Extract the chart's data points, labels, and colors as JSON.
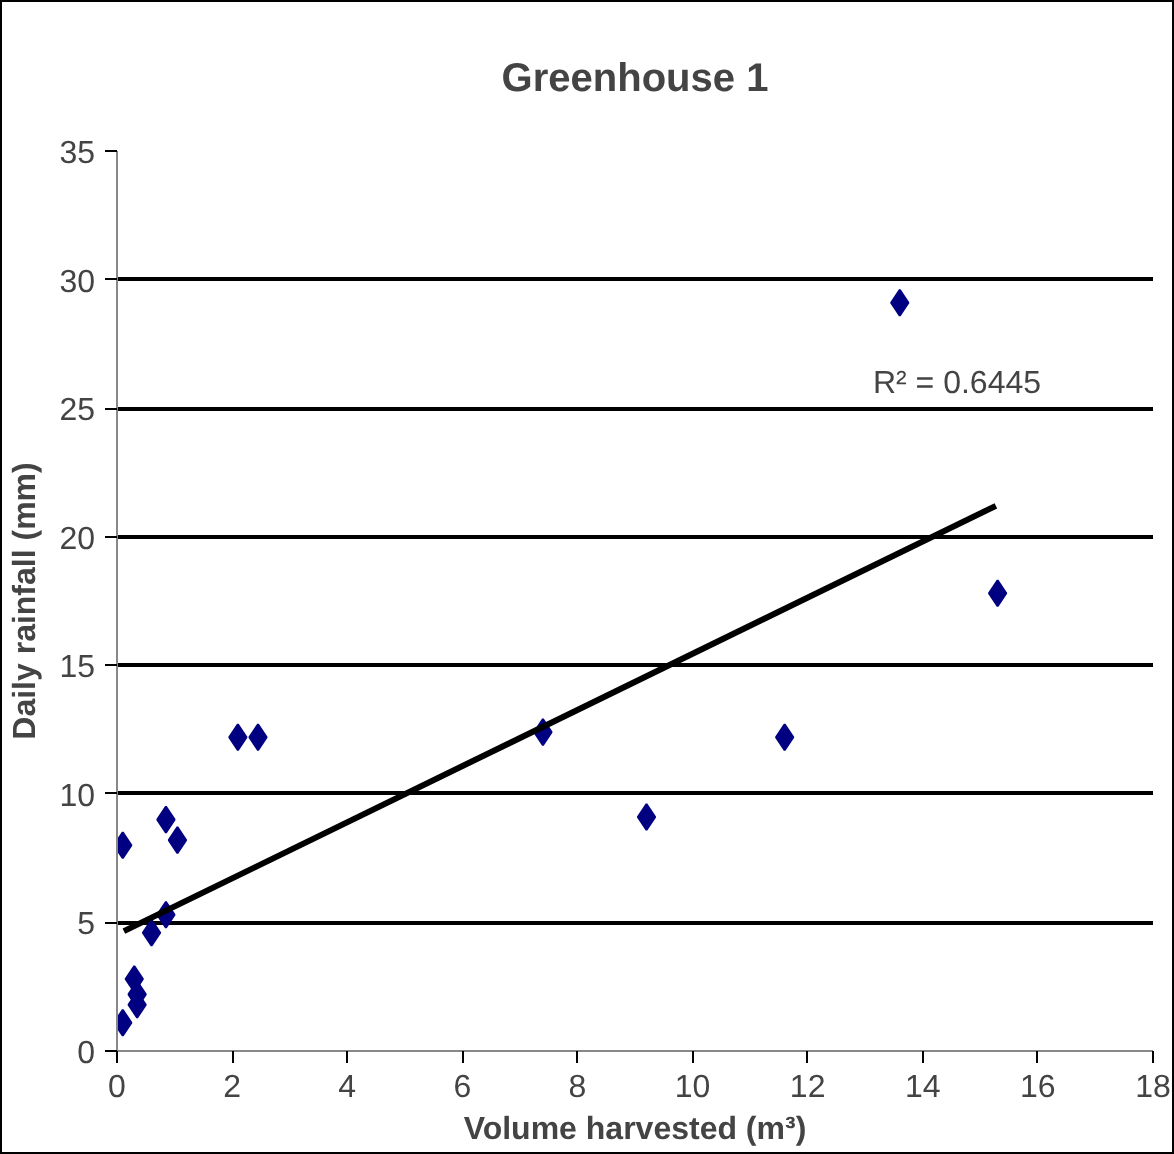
{
  "chart_data": {
    "type": "scatter",
    "title": "Greenhouse 1",
    "xlabel": "Volume harvested (m³)",
    "ylabel": "Daily rainfall (mm)",
    "xlim": [
      0,
      18
    ],
    "xticks": [
      0,
      2,
      4,
      6,
      8,
      10,
      12,
      14,
      16,
      18
    ],
    "ylim": [
      0,
      35
    ],
    "yticks": [
      0,
      5,
      10,
      15,
      20,
      25,
      30,
      35
    ],
    "grid": "y",
    "series": [
      {
        "marker": "diamond",
        "color": "#000080",
        "x": [
          0.1,
          0.1,
          0.3,
          0.35,
          0.35,
          0.6,
          0.85,
          0.85,
          1.05,
          2.1,
          2.45,
          7.4,
          9.2,
          11.6,
          13.6,
          15.3
        ],
        "values": [
          8.0,
          1.1,
          2.8,
          2.2,
          1.8,
          4.6,
          5.3,
          9.0,
          8.2,
          12.2,
          12.2,
          12.4,
          9.1,
          12.2,
          29.1,
          17.8
        ]
      },
      {
        "type": "line",
        "marker": "none",
        "color": "#000000",
        "x": [
          0.12,
          15.27
        ],
        "values": [
          4.66,
          21.2
        ]
      }
    ],
    "annotations": [
      "R² = 0.6445"
    ]
  }
}
